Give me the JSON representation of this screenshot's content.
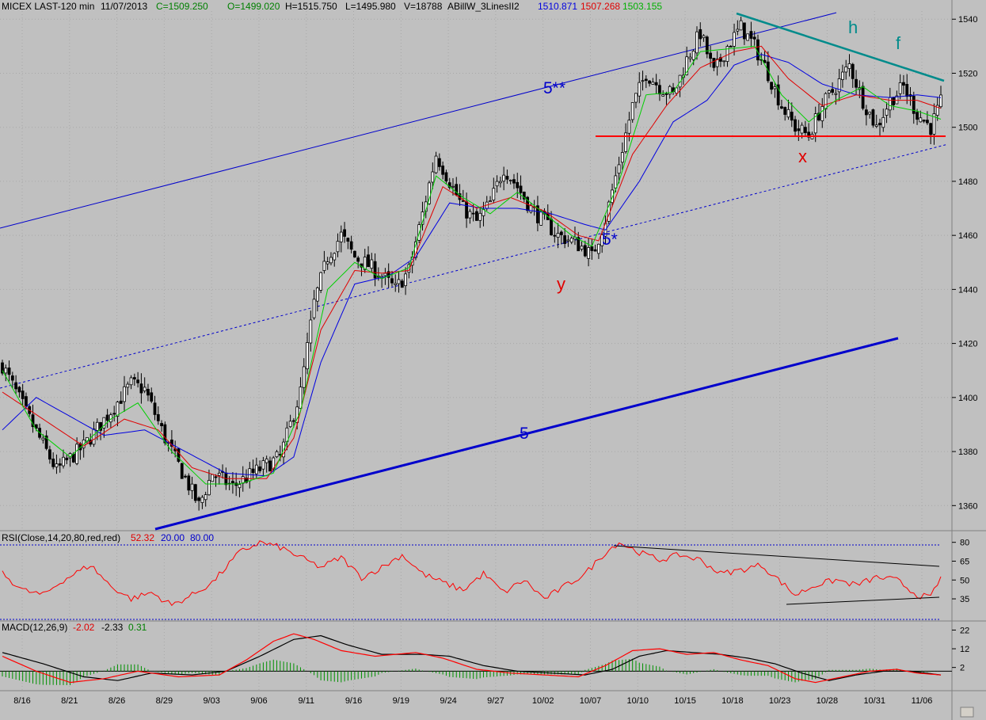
{
  "header": {
    "symbol": "MICEX LAST-120 min",
    "date": "11/07/2013",
    "close": "C=1509.250",
    "open": "O=1499.020",
    "high": "H=1515.750",
    "low": "L=1495.980",
    "volume": "V=18788",
    "indicator": "ABillW_3LinesII2",
    "line_values": [
      "1510.871",
      "1507.268",
      "1503.155"
    ]
  },
  "colors": {
    "background": "#c0c0c0",
    "candles": "#000000",
    "ma_fast": "#00d000",
    "ma_mid": "#e00000",
    "ma_slow": "#0000e0",
    "channel": "#0000cc",
    "support": "#ff0000",
    "resistance": "#008b8b",
    "rsi_line": "#ff0000",
    "macd_line": "#000000",
    "signal_line": "#ff0000",
    "histogram": "#009000"
  },
  "annotations": {
    "channel_upper": "5**",
    "channel_lower": "5*",
    "trend": "5",
    "wave_y": "y",
    "wave_x": "x",
    "wave_h": "h",
    "wave_f": "f"
  },
  "rsi": {
    "label": "RSI(Close,14,20,80,red,red)",
    "value": "52.32",
    "low": "20.00",
    "high": "80.00"
  },
  "macd": {
    "label": "MACD(12,26,9)",
    "macd_value": "-2.02",
    "signal_value": "-2.33",
    "hist_value": "0.31"
  },
  "chart_data": {
    "type": "candlestick",
    "price_axis": {
      "ticks": [
        1360,
        1380,
        1400,
        1420,
        1440,
        1460,
        1480,
        1500,
        1520,
        1540
      ],
      "ylim": [
        1351,
        1543
      ]
    },
    "rsi_axis": {
      "ticks": [
        35,
        50,
        65,
        80
      ],
      "ylim": [
        18,
        88
      ]
    },
    "macd_axis": {
      "ticks": [
        2,
        12,
        22
      ],
      "ylim": [
        -10,
        26
      ]
    },
    "x_ticks": [
      "8/16",
      "8/21",
      "8/26",
      "8/29",
      "9/03",
      "9/06",
      "9/11",
      "9/16",
      "9/19",
      "9/24",
      "9/27",
      "10/02",
      "10/07",
      "10/10",
      "10/15",
      "10/18",
      "10/23",
      "10/28",
      "10/31",
      "11/06"
    ],
    "close_path": [
      [
        0,
        1412
      ],
      [
        8,
        1392
      ],
      [
        16,
        1373
      ],
      [
        24,
        1382
      ],
      [
        32,
        1395
      ],
      [
        38,
        1405
      ],
      [
        42,
        1403
      ],
      [
        48,
        1385
      ],
      [
        54,
        1370
      ],
      [
        58,
        1360
      ],
      [
        62,
        1372
      ],
      [
        68,
        1367
      ],
      [
        74,
        1372
      ],
      [
        82,
        1378
      ],
      [
        88,
        1402
      ],
      [
        92,
        1435
      ],
      [
        96,
        1452
      ],
      [
        100,
        1460
      ],
      [
        104,
        1452
      ],
      [
        108,
        1449
      ],
      [
        112,
        1445
      ],
      [
        116,
        1440
      ],
      [
        120,
        1447
      ],
      [
        124,
        1468
      ],
      [
        128,
        1490
      ],
      [
        132,
        1480
      ],
      [
        136,
        1470
      ],
      [
        140,
        1465
      ],
      [
        144,
        1472
      ],
      [
        148,
        1485
      ],
      [
        152,
        1478
      ],
      [
        156,
        1470
      ],
      [
        160,
        1465
      ],
      [
        164,
        1460
      ],
      [
        168,
        1458
      ],
      [
        172,
        1455
      ],
      [
        174,
        1452
      ],
      [
        178,
        1466
      ],
      [
        182,
        1487
      ],
      [
        186,
        1508
      ],
      [
        190,
        1520
      ],
      [
        194,
        1515
      ],
      [
        198,
        1512
      ],
      [
        202,
        1525
      ],
      [
        206,
        1535
      ],
      [
        210,
        1520
      ],
      [
        214,
        1530
      ],
      [
        218,
        1537
      ],
      [
        222,
        1530
      ],
      [
        226,
        1520
      ],
      [
        230,
        1508
      ],
      [
        234,
        1500
      ],
      [
        238,
        1497
      ],
      [
        242,
        1508
      ],
      [
        246,
        1515
      ],
      [
        250,
        1523
      ],
      [
        254,
        1510
      ],
      [
        258,
        1500
      ],
      [
        262,
        1510
      ],
      [
        266,
        1515
      ],
      [
        270,
        1505
      ],
      [
        274,
        1500
      ],
      [
        277,
        1509
      ]
    ],
    "ma_fast_path": [
      [
        0,
        1410
      ],
      [
        10,
        1388
      ],
      [
        20,
        1378
      ],
      [
        32,
        1392
      ],
      [
        40,
        1398
      ],
      [
        50,
        1380
      ],
      [
        60,
        1368
      ],
      [
        70,
        1368
      ],
      [
        80,
        1372
      ],
      [
        88,
        1395
      ],
      [
        96,
        1440
      ],
      [
        104,
        1450
      ],
      [
        112,
        1444
      ],
      [
        120,
        1448
      ],
      [
        128,
        1482
      ],
      [
        136,
        1474
      ],
      [
        144,
        1468
      ],
      [
        152,
        1476
      ],
      [
        160,
        1468
      ],
      [
        168,
        1460
      ],
      [
        174,
        1456
      ],
      [
        182,
        1480
      ],
      [
        190,
        1512
      ],
      [
        198,
        1513
      ],
      [
        206,
        1528
      ],
      [
        214,
        1529
      ],
      [
        222,
        1530
      ],
      [
        230,
        1512
      ],
      [
        238,
        1502
      ],
      [
        246,
        1510
      ],
      [
        254,
        1515
      ],
      [
        262,
        1508
      ],
      [
        270,
        1506
      ],
      [
        277,
        1503
      ]
    ],
    "ma_mid_path": [
      [
        0,
        1402
      ],
      [
        12,
        1392
      ],
      [
        24,
        1382
      ],
      [
        36,
        1392
      ],
      [
        46,
        1388
      ],
      [
        56,
        1374
      ],
      [
        66,
        1370
      ],
      [
        78,
        1370
      ],
      [
        86,
        1385
      ],
      [
        94,
        1425
      ],
      [
        104,
        1447
      ],
      [
        112,
        1446
      ],
      [
        120,
        1447
      ],
      [
        130,
        1478
      ],
      [
        140,
        1470
      ],
      [
        150,
        1474
      ],
      [
        160,
        1469
      ],
      [
        170,
        1460
      ],
      [
        176,
        1458
      ],
      [
        186,
        1490
      ],
      [
        196,
        1508
      ],
      [
        206,
        1522
      ],
      [
        216,
        1528
      ],
      [
        224,
        1530
      ],
      [
        232,
        1518
      ],
      [
        242,
        1508
      ],
      [
        252,
        1512
      ],
      [
        262,
        1510
      ],
      [
        270,
        1510
      ],
      [
        277,
        1507
      ]
    ],
    "ma_slow_path": [
      [
        0,
        1388
      ],
      [
        10,
        1400
      ],
      [
        20,
        1393
      ],
      [
        30,
        1386
      ],
      [
        42,
        1388
      ],
      [
        54,
        1380
      ],
      [
        66,
        1372
      ],
      [
        78,
        1371
      ],
      [
        86,
        1378
      ],
      [
        94,
        1413
      ],
      [
        104,
        1442
      ],
      [
        114,
        1445
      ],
      [
        122,
        1452
      ],
      [
        132,
        1472
      ],
      [
        142,
        1470
      ],
      [
        152,
        1470
      ],
      [
        162,
        1468
      ],
      [
        172,
        1464
      ],
      [
        178,
        1462
      ],
      [
        188,
        1480
      ],
      [
        198,
        1502
      ],
      [
        208,
        1510
      ],
      [
        216,
        1523
      ],
      [
        224,
        1527
      ],
      [
        232,
        1524
      ],
      [
        242,
        1516
      ],
      [
        252,
        1512
      ],
      [
        262,
        1511
      ],
      [
        270,
        1512
      ],
      [
        277,
        1511
      ]
    ],
    "rsi_path": [
      [
        0,
        55
      ],
      [
        6,
        42
      ],
      [
        12,
        38
      ],
      [
        18,
        50
      ],
      [
        26,
        62
      ],
      [
        32,
        45
      ],
      [
        38,
        35
      ],
      [
        44,
        40
      ],
      [
        50,
        30
      ],
      [
        56,
        38
      ],
      [
        62,
        48
      ],
      [
        70,
        72
      ],
      [
        76,
        80
      ],
      [
        82,
        76
      ],
      [
        88,
        68
      ],
      [
        94,
        60
      ],
      [
        100,
        68
      ],
      [
        106,
        52
      ],
      [
        112,
        60
      ],
      [
        118,
        70
      ],
      [
        124,
        55
      ],
      [
        130,
        48
      ],
      [
        136,
        42
      ],
      [
        142,
        55
      ],
      [
        148,
        40
      ],
      [
        154,
        50
      ],
      [
        160,
        35
      ],
      [
        166,
        45
      ],
      [
        172,
        55
      ],
      [
        178,
        72
      ],
      [
        182,
        80
      ],
      [
        188,
        72
      ],
      [
        194,
        66
      ],
      [
        200,
        70
      ],
      [
        206,
        66
      ],
      [
        212,
        55
      ],
      [
        218,
        58
      ],
      [
        224,
        62
      ],
      [
        230,
        48
      ],
      [
        234,
        38
      ],
      [
        240,
        46
      ],
      [
        246,
        50
      ],
      [
        252,
        46
      ],
      [
        258,
        52
      ],
      [
        264,
        50
      ],
      [
        270,
        38
      ],
      [
        274,
        36
      ],
      [
        277,
        52
      ]
    ],
    "macd_path": [
      [
        0,
        8
      ],
      [
        10,
        0
      ],
      [
        20,
        -6
      ],
      [
        30,
        -4
      ],
      [
        40,
        0
      ],
      [
        52,
        -3
      ],
      [
        64,
        -2
      ],
      [
        72,
        6
      ],
      [
        80,
        16
      ],
      [
        86,
        20
      ],
      [
        92,
        17
      ],
      [
        100,
        11
      ],
      [
        110,
        8
      ],
      [
        122,
        10
      ],
      [
        130,
        7
      ],
      [
        140,
        1
      ],
      [
        150,
        -1
      ],
      [
        160,
        -2
      ],
      [
        170,
        -3
      ],
      [
        178,
        3
      ],
      [
        186,
        11
      ],
      [
        194,
        12
      ],
      [
        202,
        9
      ],
      [
        210,
        10
      ],
      [
        218,
        6
      ],
      [
        226,
        3
      ],
      [
        234,
        -4
      ],
      [
        240,
        -6
      ],
      [
        248,
        -3
      ],
      [
        256,
        0
      ],
      [
        264,
        1
      ],
      [
        270,
        -1
      ],
      [
        277,
        -2
      ]
    ],
    "signal_path": [
      [
        0,
        10
      ],
      [
        12,
        4
      ],
      [
        24,
        -3
      ],
      [
        34,
        -5
      ],
      [
        44,
        -1
      ],
      [
        56,
        -2
      ],
      [
        66,
        0
      ],
      [
        76,
        8
      ],
      [
        86,
        17
      ],
      [
        94,
        19
      ],
      [
        102,
        14
      ],
      [
        112,
        9
      ],
      [
        124,
        9
      ],
      [
        132,
        8
      ],
      [
        142,
        3
      ],
      [
        152,
        0
      ],
      [
        162,
        -1
      ],
      [
        172,
        -2
      ],
      [
        180,
        1
      ],
      [
        188,
        8
      ],
      [
        196,
        11
      ],
      [
        204,
        10
      ],
      [
        212,
        9
      ],
      [
        220,
        7
      ],
      [
        228,
        4
      ],
      [
        236,
        -1
      ],
      [
        244,
        -5
      ],
      [
        252,
        -2
      ],
      [
        260,
        0
      ],
      [
        268,
        0
      ],
      [
        277,
        -2
      ]
    ],
    "levels": {
      "support": 1495,
      "rsi_upper_band": 80,
      "rsi_lower_band": 20
    }
  }
}
